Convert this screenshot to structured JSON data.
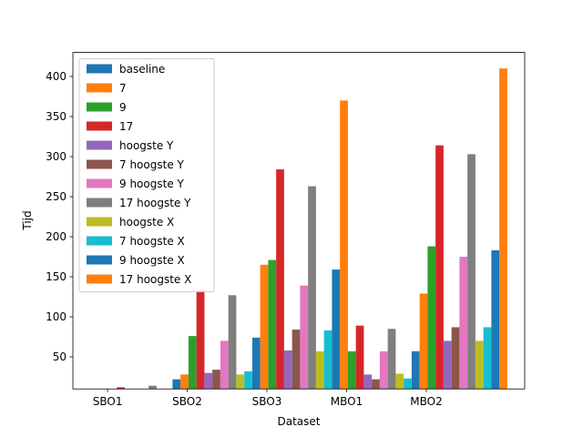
{
  "chart_data": {
    "type": "bar",
    "xlabel": "Dataset",
    "ylabel": "Tijd",
    "categories": [
      "SBO1",
      "SBO2",
      "SBO3",
      "MBO1",
      "MBO2"
    ],
    "ylim": [
      10,
      430
    ],
    "yticks": [
      50,
      100,
      150,
      200,
      250,
      300,
      350,
      400
    ],
    "grid": false,
    "legend_position": "upper-left",
    "series": [
      {
        "name": "baseline",
        "color": "#1f77b4",
        "values": [
          3,
          22,
          74,
          159,
          57
        ]
      },
      {
        "name": "7",
        "color": "#ff7f0e",
        "values": [
          5,
          28,
          165,
          370,
          129
        ]
      },
      {
        "name": "9",
        "color": "#2ca02c",
        "values": [
          6,
          76,
          171,
          57,
          188
        ]
      },
      {
        "name": "17",
        "color": "#d62728",
        "values": [
          12,
          133,
          284,
          89,
          314
        ]
      },
      {
        "name": "hoogste Y",
        "color": "#9467bd",
        "values": [
          4,
          30,
          58,
          28,
          70
        ]
      },
      {
        "name": "7 hoogste Y",
        "color": "#8c564b",
        "values": [
          5,
          34,
          84,
          22,
          87
        ]
      },
      {
        "name": "9 hoogste Y",
        "color": "#e377c2",
        "values": [
          7,
          70,
          139,
          57,
          175
        ]
      },
      {
        "name": "17 hoogste Y",
        "color": "#7f7f7f",
        "values": [
          14,
          127,
          263,
          85,
          303
        ]
      },
      {
        "name": "hoogste X",
        "color": "#bcbd22",
        "values": [
          4,
          28,
          57,
          29,
          70
        ]
      },
      {
        "name": "7 hoogste X",
        "color": "#17becf",
        "values": [
          5,
          32,
          83,
          23,
          87
        ]
      },
      {
        "name": "9 hoogste X",
        "color": "#1f77b4",
        "values": [
          7,
          0,
          0,
          0,
          183
        ]
      },
      {
        "name": "17 hoogste X",
        "color": "#ff7f0e",
        "values": [
          0,
          0,
          0,
          0,
          410
        ]
      }
    ]
  }
}
